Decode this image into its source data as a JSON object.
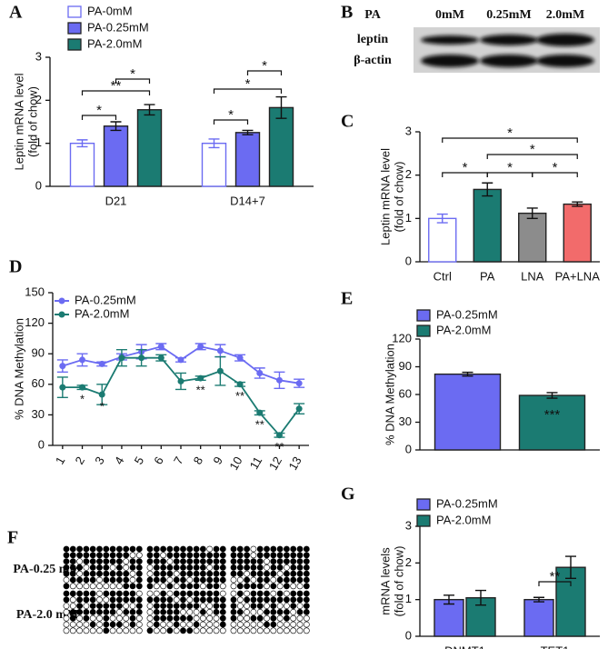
{
  "chart_data": [
    {
      "type": "bar",
      "panel": "A",
      "ylabel": [
        "Leptin mRNA level",
        "(fold of chow)"
      ],
      "categories": [
        "D21",
        "D14+7"
      ],
      "series": [
        {
          "name": "PA-0mM",
          "color": "#ffffff",
          "edgecolor": "#6b6bf2",
          "values": [
            1.0,
            1.0
          ],
          "errors": [
            0.08,
            0.1
          ]
        },
        {
          "name": "PA-0.25mM",
          "color": "#6b6bf2",
          "edgecolor": "#222222",
          "values": [
            1.4,
            1.25
          ],
          "errors": [
            0.1,
            0.05
          ]
        },
        {
          "name": "PA-2.0mM",
          "color": "#1b7b72",
          "edgecolor": "#222222",
          "values": [
            1.78,
            1.83
          ],
          "errors": [
            0.12,
            0.25
          ]
        }
      ],
      "significance": [
        [
          "*",
          "**",
          "*"
        ],
        [
          "*",
          "*",
          "*"
        ]
      ],
      "ylim": [
        0,
        3
      ],
      "yticks": [
        0,
        1,
        2,
        3
      ]
    },
    {
      "type": "bar",
      "panel": "C",
      "ylabel": [
        "Leptin mRNA level",
        "(fold of chow)"
      ],
      "categories": [
        "Ctrl",
        "PA",
        "LNA",
        "PA+LNA"
      ],
      "values": [
        1.0,
        1.67,
        1.12,
        1.33
      ],
      "errors": [
        0.1,
        0.15,
        0.12,
        0.05
      ],
      "colors": [
        "#ffffff",
        "#1b7b72",
        "#8c8c8c",
        "#f26b6b"
      ],
      "edgecolors": [
        "#6b6bf2",
        "#222222",
        "#222222",
        "#222222"
      ],
      "significance": [
        "*",
        "*",
        "*",
        "*",
        "*"
      ],
      "ylim": [
        0,
        3
      ],
      "yticks": [
        0,
        1,
        2,
        3
      ]
    },
    {
      "type": "line",
      "panel": "D",
      "ylabel": [
        "% DNA Methylation"
      ],
      "categories": [
        "1",
        "2",
        "3",
        "4",
        "5",
        "6",
        "7",
        "8",
        "9",
        "10",
        "11",
        "12",
        "13"
      ],
      "series": [
        {
          "name": "PA-0.25mM",
          "color": "#6b6bf2",
          "values": [
            78,
            84,
            80,
            87,
            92,
            97,
            84,
            97,
            93,
            86,
            71,
            64,
            61
          ],
          "errors": [
            6,
            6,
            2,
            3,
            7,
            3,
            2,
            3,
            6,
            3,
            5,
            8,
            4
          ]
        },
        {
          "name": "PA-2.0mM",
          "color": "#1b7b72",
          "values": [
            57,
            57,
            50,
            86,
            86,
            86,
            63,
            66,
            73,
            60,
            32,
            10,
            36
          ],
          "errors": [
            10,
            2,
            10,
            8,
            8,
            3,
            8,
            2,
            14,
            2,
            2,
            2,
            5
          ]
        }
      ],
      "significance": [
        null,
        "*",
        "*",
        null,
        null,
        null,
        null,
        "**",
        null,
        "**",
        "**",
        "**",
        null
      ],
      "ylim": [
        0,
        150
      ],
      "yticks": [
        0,
        30,
        60,
        90,
        120,
        150
      ]
    },
    {
      "type": "bar",
      "panel": "E",
      "ylabel": [
        "% DNA Methylation"
      ],
      "categories": [
        null
      ],
      "series": [
        {
          "name": "PA-0.25mM",
          "color": "#6b6bf2",
          "edgecolor": "#222222",
          "values": [
            82
          ],
          "errors": [
            2
          ]
        },
        {
          "name": "PA-2.0mM",
          "color": "#1b7b72",
          "edgecolor": "#222222",
          "values": [
            59
          ],
          "errors": [
            3
          ]
        }
      ],
      "significance": [
        "***"
      ],
      "ylim": [
        0,
        120
      ],
      "yticks": [
        0,
        30,
        60,
        90,
        120
      ]
    },
    {
      "type": "bar",
      "panel": "G",
      "ylabel": [
        "mRNA levels",
        "(fold of chow)"
      ],
      "categories": [
        "DNMT1",
        "TET1"
      ],
      "series": [
        {
          "name": "PA-0.25mM",
          "color": "#6b6bf2",
          "edgecolor": "#222222",
          "values": [
            1.0,
            1.0
          ],
          "errors": [
            0.12,
            0.06
          ]
        },
        {
          "name": "PA-2.0mM",
          "color": "#1b7b72",
          "edgecolor": "#222222",
          "values": [
            1.05,
            1.88
          ],
          "errors": [
            0.2,
            0.3
          ]
        }
      ],
      "significance": [
        null,
        "**"
      ],
      "ylim": [
        0,
        3
      ],
      "yticks": [
        0,
        1,
        2,
        3
      ]
    }
  ],
  "blot": {
    "panel": "B",
    "header": "PA",
    "lanes": [
      "0mM",
      "0.25mM",
      "2.0mM"
    ],
    "rows": [
      "leptin",
      "β-actin"
    ]
  },
  "methylation_map": {
    "panel": "F",
    "rows": [
      "PA-0.25 mM",
      "PA-2.0 mM"
    ]
  }
}
